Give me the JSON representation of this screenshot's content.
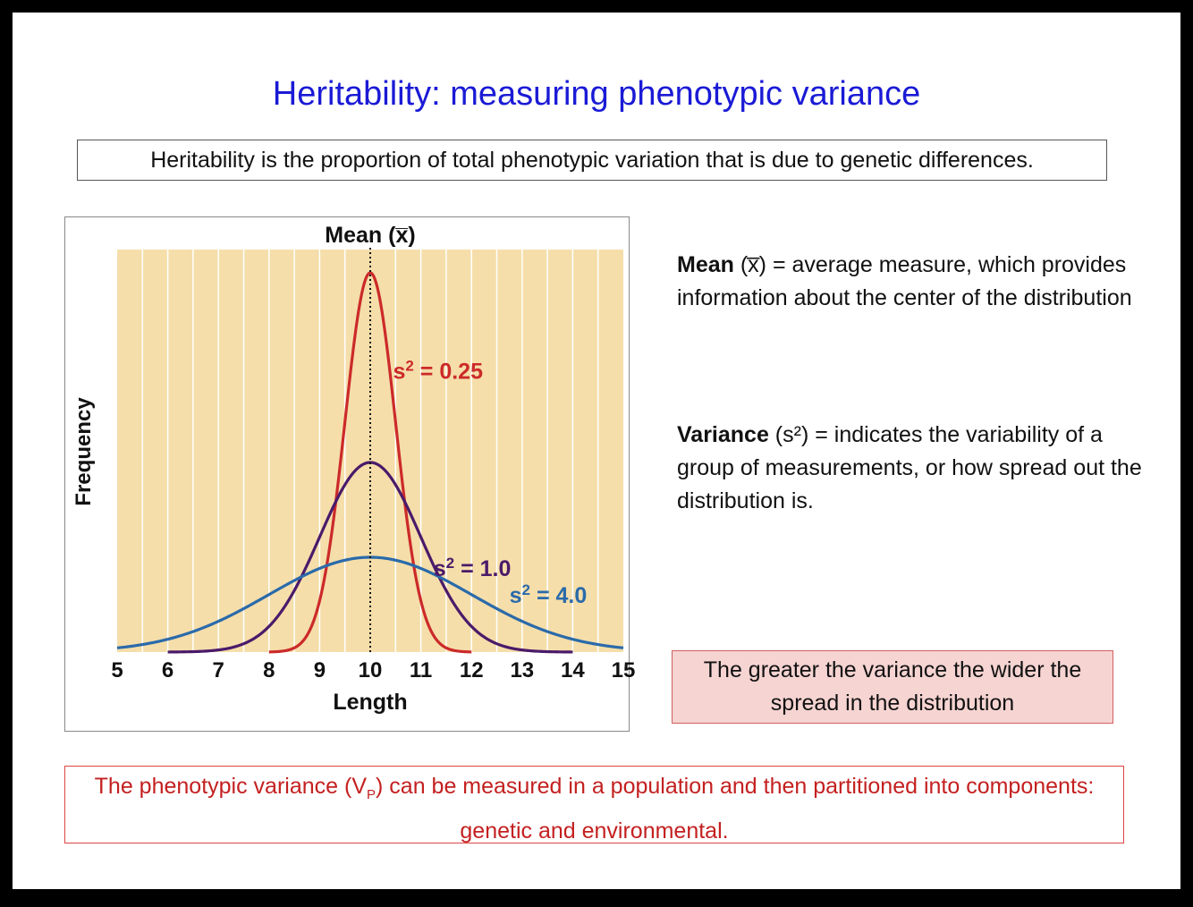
{
  "slide": {
    "title": "Heritability: measuring phenotypic variance",
    "definition": "Heritability is the proportion of total phenotypic variation that is due to genetic differences.",
    "mean_term": "Mean",
    "mean_desc": " (x̅) = average measure, which provides information about the center of the distribution",
    "variance_term": "Variance",
    "variance_desc": " (s²) = indicates the variability of a group of measurements, or how spread out the distribution is.",
    "spread_note": "The greater the variance the wider the spread in the distribution",
    "partition_pre": "The phenotypic variance (V",
    "partition_sub": "P",
    "partition_post": ") can be measured in a population and then partitioned into components: genetic and environmental."
  },
  "chart_data": {
    "type": "line",
    "title": "Mean (x̅)",
    "xlabel": "Length",
    "ylabel": "Frequency",
    "xlim": [
      5,
      15
    ],
    "xticks": [
      5,
      6,
      7,
      8,
      9,
      10,
      11,
      12,
      13,
      14,
      15
    ],
    "mean": 10,
    "grid": true,
    "background": "#f5deaa",
    "series": [
      {
        "name": "s² = 0.25",
        "label_pre": "s",
        "label_sup": "2",
        "label_post": " = 0.25",
        "variance": 0.25,
        "mean": 10,
        "color": "#cc2a2a",
        "peak": 1.0
      },
      {
        "name": "s² = 1.0",
        "label_pre": "s",
        "label_sup": "2",
        "label_post": " = 1.0",
        "variance": 1.0,
        "mean": 10,
        "color": "#4a1a6a",
        "peak": 0.5
      },
      {
        "name": "s² = 4.0",
        "label_pre": "s",
        "label_sup": "2",
        "label_post": " = 4.0",
        "variance": 4.0,
        "mean": 10,
        "color": "#2a6aaa",
        "peak": 0.25
      }
    ]
  }
}
